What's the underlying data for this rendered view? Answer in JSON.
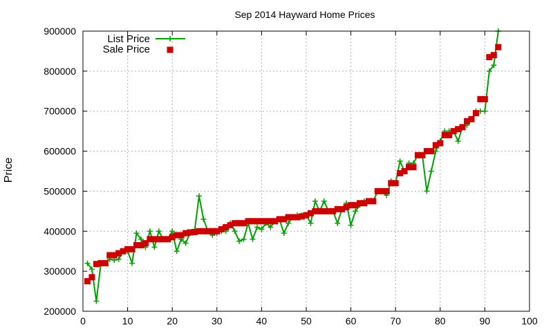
{
  "chart_data": {
    "type": "line",
    "title": "Sep 2014 Hayward Home Prices",
    "xlabel": "",
    "ylabel": "Price",
    "xlim": [
      0,
      100
    ],
    "ylim": [
      200000,
      900000
    ],
    "x_ticks": [
      "0",
      "10",
      "20",
      "30",
      "40",
      "50",
      "60",
      "70",
      "80",
      "90",
      "100"
    ],
    "y_ticks": [
      "200000",
      "300000",
      "400000",
      "500000",
      "600000",
      "700000",
      "800000",
      "900000"
    ],
    "grid": true,
    "legend_position": "top-left",
    "series": [
      {
        "name": "List Price",
        "style": "line-with-plus-markers",
        "color": "#00a000",
        "x": [
          1,
          2,
          3,
          4,
          5,
          6,
          7,
          8,
          9,
          10,
          11,
          12,
          13,
          14,
          15,
          16,
          17,
          18,
          19,
          20,
          21,
          22,
          23,
          24,
          25,
          26,
          27,
          28,
          29,
          30,
          31,
          32,
          33,
          34,
          35,
          36,
          37,
          38,
          39,
          40,
          41,
          42,
          43,
          44,
          45,
          46,
          47,
          48,
          49,
          50,
          51,
          52,
          53,
          54,
          55,
          56,
          57,
          58,
          59,
          60,
          61,
          62,
          63,
          64,
          65,
          66,
          67,
          68,
          69,
          70,
          71,
          72,
          73,
          74,
          75,
          76,
          77,
          78,
          79,
          80,
          81,
          82,
          83,
          84,
          85,
          86,
          87,
          88,
          89,
          90,
          91,
          92,
          93
        ],
        "values": [
          320000,
          305000,
          225000,
          318000,
          320000,
          330000,
          328000,
          330000,
          350000,
          350000,
          320000,
          395000,
          380000,
          360000,
          400000,
          360000,
          400000,
          380000,
          380000,
          400000,
          350000,
          380000,
          370000,
          395000,
          400000,
          488000,
          430000,
          400000,
          390000,
          395000,
          400000,
          400000,
          420000,
          400000,
          375000,
          380000,
          420000,
          380000,
          410000,
          405000,
          420000,
          410000,
          425000,
          430000,
          395000,
          420000,
          435000,
          440000,
          440000,
          440000,
          420000,
          475000,
          450000,
          475000,
          450000,
          450000,
          420000,
          455000,
          470000,
          415000,
          450000,
          465000,
          475000,
          475000,
          475000,
          500000,
          500000,
          490000,
          525000,
          520000,
          575000,
          550000,
          570000,
          570000,
          590000,
          590000,
          500000,
          550000,
          600000,
          625000,
          650000,
          650000,
          650000,
          625000,
          660000,
          665000,
          680000,
          700000,
          700000,
          700000,
          800000,
          815000,
          900000
        ]
      },
      {
        "name": "Sale Price",
        "style": "square-markers",
        "color": "#cc0000",
        "x": [
          1,
          2,
          3,
          4,
          5,
          6,
          7,
          8,
          9,
          10,
          11,
          12,
          13,
          14,
          15,
          16,
          17,
          18,
          19,
          20,
          21,
          22,
          23,
          24,
          25,
          26,
          27,
          28,
          29,
          30,
          31,
          32,
          33,
          34,
          35,
          36,
          37,
          38,
          39,
          40,
          41,
          42,
          43,
          44,
          45,
          46,
          47,
          48,
          49,
          50,
          51,
          52,
          53,
          54,
          55,
          56,
          57,
          58,
          59,
          60,
          61,
          62,
          63,
          64,
          65,
          66,
          67,
          68,
          69,
          70,
          71,
          72,
          73,
          74,
          75,
          76,
          77,
          78,
          79,
          80,
          81,
          82,
          83,
          84,
          85,
          86,
          87,
          88,
          89,
          90,
          91,
          92,
          93
        ],
        "values": [
          275000,
          285000,
          318000,
          320000,
          320000,
          340000,
          340000,
          345000,
          350000,
          355000,
          355000,
          365000,
          365000,
          370000,
          380000,
          380000,
          380000,
          380000,
          380000,
          385000,
          390000,
          390000,
          395000,
          397000,
          398000,
          400000,
          400000,
          400000,
          400000,
          400000,
          405000,
          410000,
          415000,
          420000,
          420000,
          420000,
          425000,
          425000,
          425000,
          425000,
          425000,
          425000,
          425000,
          430000,
          430000,
          435000,
          435000,
          435000,
          437000,
          440000,
          445000,
          450000,
          450000,
          450000,
          450000,
          450000,
          455000,
          455000,
          460000,
          465000,
          465000,
          470000,
          470000,
          475000,
          475000,
          500000,
          500000,
          500000,
          520000,
          520000,
          545000,
          550000,
          560000,
          560000,
          590000,
          590000,
          600000,
          600000,
          615000,
          620000,
          640000,
          640000,
          650000,
          655000,
          660000,
          675000,
          680000,
          695000,
          730000,
          730000,
          835000,
          840000,
          860000
        ]
      }
    ]
  },
  "colors": {
    "list_price": "#00a000",
    "sale_price": "#cc0000",
    "grid": "#b0b0b0",
    "axis": "#000000"
  }
}
